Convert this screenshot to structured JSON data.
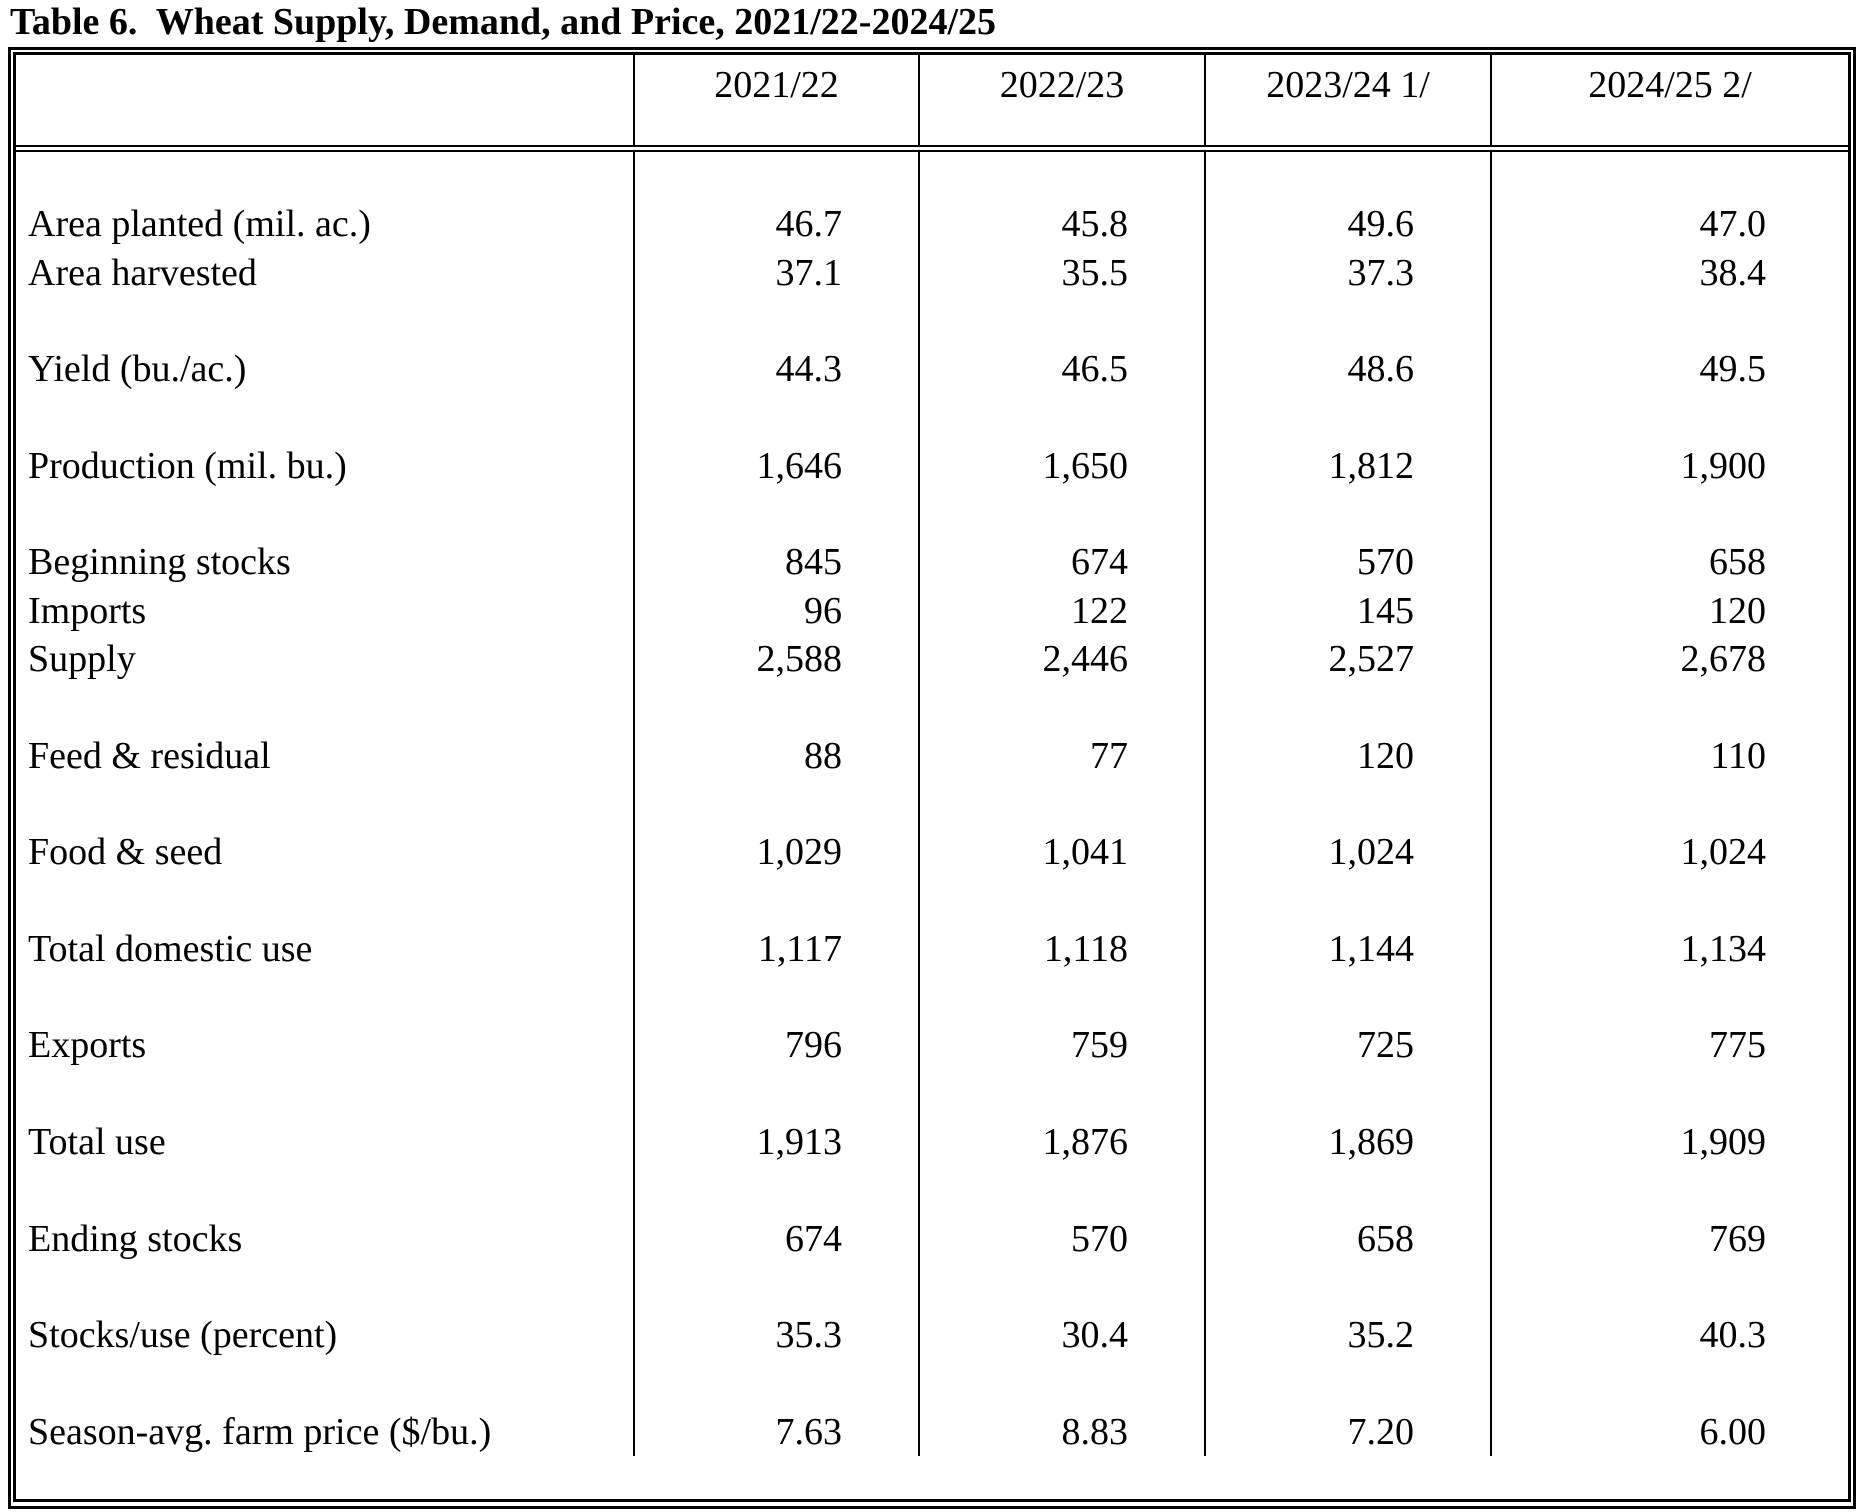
{
  "title": "Table 6.  Wheat Supply, Demand, and Price, 2021/22-2024/25",
  "colors": {
    "text": "#000000",
    "background": "#ffffff",
    "border": "#000000"
  },
  "table": {
    "columns": [
      "2021/22",
      "2022/23",
      "2023/24 1/",
      "2024/25 2/"
    ],
    "rows": [
      {
        "label": "Area planted (mil. ac.)",
        "values": [
          "46.7",
          "45.8",
          "49.6",
          "47.0"
        ],
        "gap_before": true
      },
      {
        "label": "Area harvested",
        "values": [
          "37.1",
          "35.5",
          "37.3",
          "38.4"
        ],
        "gap_before": false
      },
      {
        "label": "Yield (bu./ac.)",
        "values": [
          "44.3",
          "46.5",
          "48.6",
          "49.5"
        ],
        "gap_before": true
      },
      {
        "label": "Production (mil. bu.)",
        "values": [
          "1,646",
          "1,650",
          "1,812",
          "1,900"
        ],
        "gap_before": true
      },
      {
        "label": "Beginning stocks",
        "values": [
          "845",
          "674",
          "570",
          "658"
        ],
        "gap_before": true
      },
      {
        "label": "Imports",
        "values": [
          "96",
          "122",
          "145",
          "120"
        ],
        "gap_before": false
      },
      {
        "label": "Supply",
        "values": [
          "2,588",
          "2,446",
          "2,527",
          "2,678"
        ],
        "gap_before": false
      },
      {
        "label": "Feed & residual",
        "values": [
          "88",
          "77",
          "120",
          "110"
        ],
        "gap_before": true
      },
      {
        "label": "Food & seed",
        "values": [
          "1,029",
          "1,041",
          "1,024",
          "1,024"
        ],
        "gap_before": true
      },
      {
        "label": "Total domestic use",
        "values": [
          "1,117",
          "1,118",
          "1,144",
          "1,134"
        ],
        "gap_before": true
      },
      {
        "label": "Exports",
        "values": [
          "796",
          "759",
          "725",
          "775"
        ],
        "gap_before": true
      },
      {
        "label": "Total use",
        "values": [
          "1,913",
          "1,876",
          "1,869",
          "1,909"
        ],
        "gap_before": true
      },
      {
        "label": "Ending stocks",
        "values": [
          "674",
          "570",
          "658",
          "769"
        ],
        "gap_before": true
      },
      {
        "label": "Stocks/use (percent)",
        "values": [
          "35.3",
          "30.4",
          "35.2",
          "40.3"
        ],
        "gap_before": true
      },
      {
        "label": "Season-avg. farm price ($/bu.)",
        "values": [
          "7.63",
          "8.83",
          "7.20",
          "6.00"
        ],
        "gap_before": true
      }
    ]
  }
}
